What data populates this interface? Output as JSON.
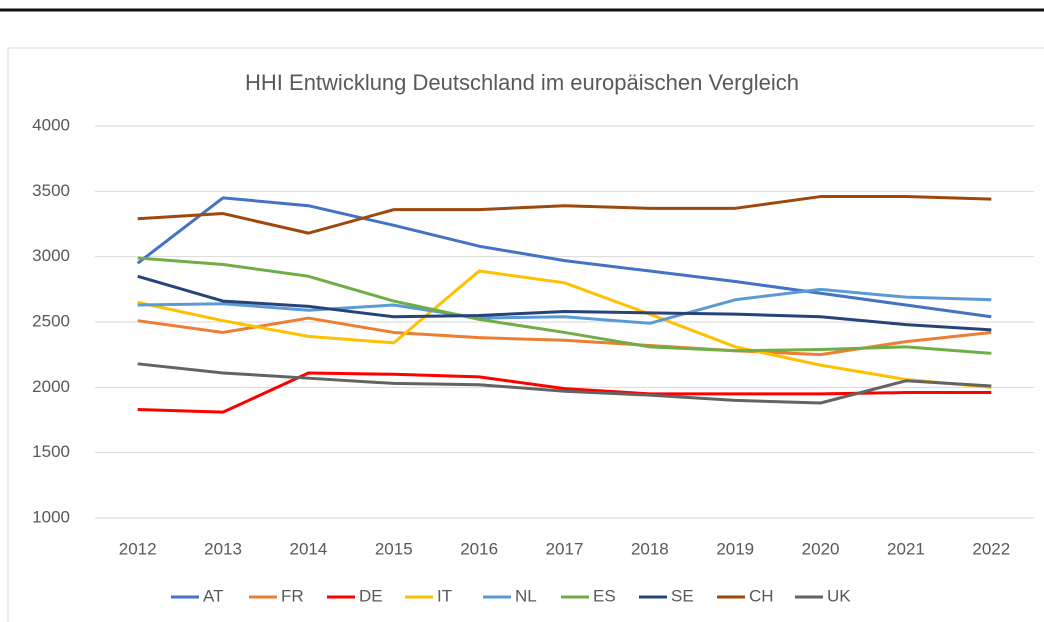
{
  "chart_data": {
    "type": "line",
    "title": "HHI Entwicklung Deutschland im europäischen Vergleich",
    "categories": [
      "2012",
      "2013",
      "2014",
      "2015",
      "2016",
      "2017",
      "2018",
      "2019",
      "2020",
      "2021",
      "2022"
    ],
    "ylim": [
      1000,
      4000
    ],
    "yticks": [
      1000,
      1500,
      2000,
      2500,
      3000,
      3500,
      4000
    ],
    "grid": true,
    "legend": "bottom",
    "series": [
      {
        "name": "AT",
        "color": "#4472c4",
        "values": [
          2950,
          3450,
          3390,
          3240,
          3080,
          2970,
          2890,
          2810,
          2720,
          2630,
          2540
        ]
      },
      {
        "name": "FR",
        "color": "#ed7d31",
        "values": [
          2510,
          2420,
          2530,
          2420,
          2380,
          2360,
          2320,
          2280,
          2250,
          2350,
          2420
        ]
      },
      {
        "name": "DE",
        "color": "#ff0000",
        "values": [
          1830,
          1810,
          2110,
          2100,
          2080,
          1990,
          1950,
          1950,
          1950,
          1960,
          1960
        ]
      },
      {
        "name": "IT",
        "color": "#ffc000",
        "values": [
          2650,
          2510,
          2390,
          2340,
          2890,
          2800,
          2560,
          2310,
          2170,
          2060,
          2000
        ]
      },
      {
        "name": "NL",
        "color": "#5b9bd5",
        "values": [
          2630,
          2640,
          2590,
          2630,
          2530,
          2540,
          2490,
          2670,
          2750,
          2690,
          2670
        ]
      },
      {
        "name": "ES",
        "color": "#70ad47",
        "values": [
          2990,
          2940,
          2850,
          2660,
          2520,
          2420,
          2310,
          2280,
          2290,
          2310,
          2260
        ]
      },
      {
        "name": "SE",
        "color": "#264478",
        "values": [
          2850,
          2660,
          2620,
          2540,
          2550,
          2580,
          2570,
          2560,
          2540,
          2480,
          2440
        ]
      },
      {
        "name": "CH",
        "color": "#9e480e",
        "values": [
          3290,
          3330,
          3180,
          3360,
          3360,
          3390,
          3370,
          3370,
          3460,
          3460,
          3440
        ]
      },
      {
        "name": "UK",
        "color": "#636363",
        "values": [
          2180,
          2110,
          2070,
          2030,
          2020,
          1970,
          1940,
          1900,
          1880,
          2050,
          2010
        ]
      }
    ]
  }
}
